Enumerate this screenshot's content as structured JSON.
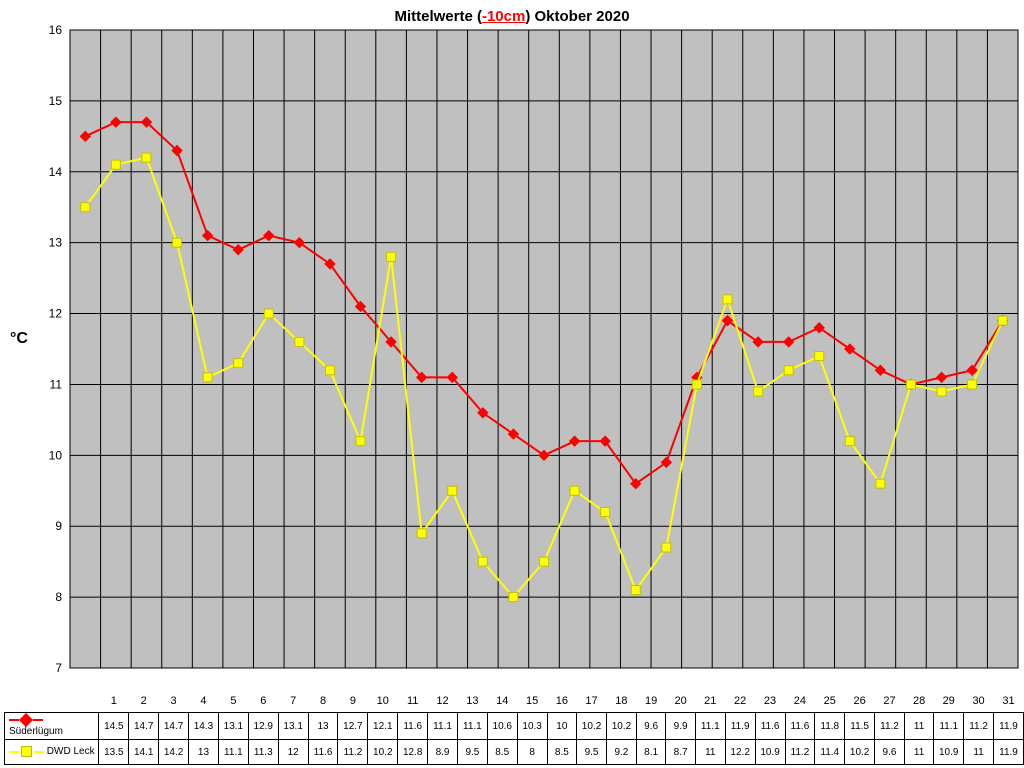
{
  "title_prefix": "Mittelwerte (",
  "title_depth": "-10cm",
  "title_suffix": ") Oktober 2020",
  "y_axis_label": "°C",
  "chart": {
    "type": "line",
    "background_color": "#c0c0c0",
    "grid_color": "#000000",
    "ylim_min": 7,
    "ylim_max": 16,
    "ytick_step": 1,
    "x_categories": [
      "1",
      "2",
      "3",
      "4",
      "5",
      "6",
      "7",
      "8",
      "9",
      "10",
      "11",
      "12",
      "13",
      "14",
      "15",
      "16",
      "17",
      "18",
      "19",
      "20",
      "21",
      "22",
      "23",
      "24",
      "25",
      "26",
      "27",
      "28",
      "29",
      "30",
      "31"
    ],
    "series": [
      {
        "name": "Süderlügum",
        "color": "#ff0000",
        "marker": "diamond",
        "marker_size": 10,
        "line_width": 2,
        "values": [
          14.5,
          14.7,
          14.7,
          14.3,
          13.1,
          12.9,
          13.1,
          13,
          12.7,
          12.1,
          11.6,
          11.1,
          11.1,
          10.6,
          10.3,
          10,
          10.2,
          10.2,
          9.6,
          9.9,
          11.1,
          11.9,
          11.6,
          11.6,
          11.8,
          11.5,
          11.2,
          11,
          11.1,
          11.2,
          11.9
        ]
      },
      {
        "name": "DWD Leck",
        "color": "#ffff00",
        "marker": "square",
        "marker_size": 9,
        "line_width": 2,
        "values": [
          13.5,
          14.1,
          14.2,
          13,
          11.1,
          11.3,
          12,
          11.6,
          11.2,
          10.2,
          12.8,
          8.9,
          9.5,
          8.5,
          8,
          8.5,
          9.5,
          9.2,
          8.1,
          8.7,
          11,
          12.2,
          10.9,
          11.2,
          11.4,
          10.2,
          9.6,
          11,
          10.9,
          11,
          11.9
        ]
      }
    ]
  },
  "table": {
    "display_values": {
      "Süderlügum": [
        "14.5",
        "14.7",
        "14.7",
        "14.3",
        "13.1",
        "12.9",
        "13.1",
        "13",
        "12.7",
        "12.1",
        "11.6",
        "11.1",
        "11.1",
        "10.6",
        "10.3",
        "10",
        "10.2",
        "10.2",
        "9.6",
        "9.9",
        "11.1",
        "11.9",
        "11.6",
        "11.6",
        "11.8",
        "11.5",
        "11.2",
        "11",
        "11.1",
        "11.2",
        "11.9"
      ],
      "DWD Leck": [
        "13.5",
        "14.1",
        "14.2",
        "13",
        "11.1",
        "11.3",
        "12",
        "11.6",
        "11.2",
        "10.2",
        "12.8",
        "8.9",
        "9.5",
        "8.5",
        "8",
        "8.5",
        "9.5",
        "9.2",
        "8.1",
        "8.7",
        "11",
        "12.2",
        "10.9",
        "11.2",
        "11.4",
        "10.2",
        "9.6",
        "11",
        "10.9",
        "11",
        "11.9"
      ]
    }
  }
}
